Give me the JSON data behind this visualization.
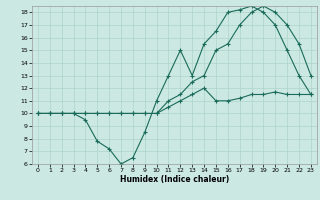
{
  "title": "",
  "xlabel": "Humidex (Indice chaleur)",
  "bg_color": "#cbe8e3",
  "line_color": "#1a6b5a",
  "grid_color": "#aed4cc",
  "xlim": [
    -0.5,
    23.5
  ],
  "ylim": [
    6,
    18.5
  ],
  "yticks": [
    6,
    7,
    8,
    9,
    10,
    11,
    12,
    13,
    14,
    15,
    16,
    17,
    18
  ],
  "xticks": [
    0,
    1,
    2,
    3,
    4,
    5,
    6,
    7,
    8,
    9,
    10,
    11,
    12,
    13,
    14,
    15,
    16,
    17,
    18,
    19,
    20,
    21,
    22,
    23
  ],
  "curve1_x": [
    0,
    1,
    2,
    3,
    4,
    5,
    6,
    7,
    8,
    9,
    10,
    11,
    12,
    13,
    14,
    15,
    16,
    17,
    18,
    19,
    20,
    21,
    22,
    23
  ],
  "curve1_y": [
    10,
    10,
    10,
    10,
    10,
    10,
    10,
    10,
    10,
    10,
    10,
    10.5,
    11,
    11.5,
    12,
    11,
    11,
    11.2,
    11.5,
    11.5,
    11.7,
    11.5,
    11.5,
    11.5
  ],
  "curve2_x": [
    0,
    1,
    2,
    3,
    4,
    5,
    6,
    7,
    8,
    9,
    10,
    11,
    12,
    13,
    14,
    15,
    16,
    17,
    18,
    19,
    20,
    21,
    22,
    23
  ],
  "curve2_y": [
    10,
    10,
    10,
    10,
    9.5,
    7.8,
    7.2,
    6,
    6.5,
    8.5,
    11,
    13,
    15,
    13,
    15.5,
    16.5,
    18,
    18.2,
    18.5,
    18,
    17,
    15,
    13,
    11.5
  ],
  "curve3_x": [
    0,
    1,
    2,
    3,
    4,
    5,
    6,
    7,
    8,
    9,
    10,
    11,
    12,
    13,
    14,
    15,
    16,
    17,
    18,
    19,
    20,
    21,
    22,
    23
  ],
  "curve3_y": [
    10,
    10,
    10,
    10,
    10,
    10,
    10,
    10,
    10,
    10,
    10,
    11,
    11.5,
    12.5,
    13,
    15,
    15.5,
    17,
    18,
    18.5,
    18,
    17,
    15.5,
    13
  ]
}
